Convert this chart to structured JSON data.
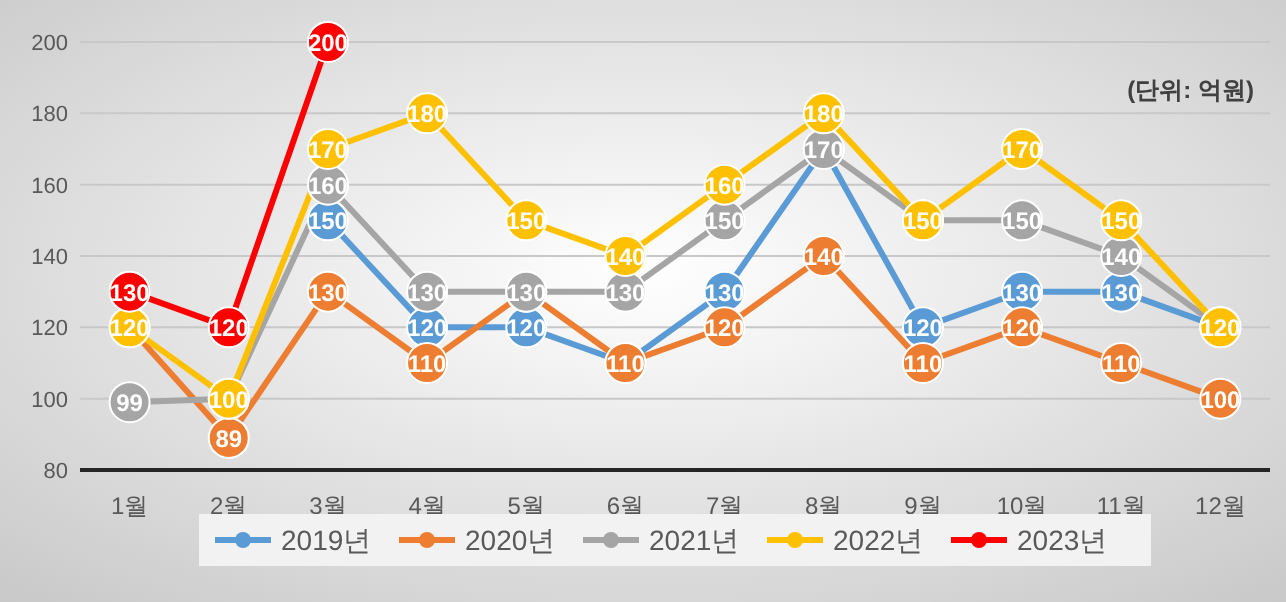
{
  "chart_data": {
    "type": "line",
    "categories": [
      "1월",
      "2월",
      "3월",
      "4월",
      "5월",
      "6월",
      "7월",
      "8월",
      "9월",
      "10월",
      "11월",
      "12월"
    ],
    "series": [
      {
        "name": "2019년",
        "color": "#5b9bd5",
        "values": [
          null,
          null,
          150,
          120,
          120,
          110,
          130,
          170,
          120,
          130,
          130,
          120
        ],
        "value_labels": [
          null,
          null,
          "150",
          "120",
          "120",
          null,
          "130",
          null,
          "120",
          "130",
          "130",
          null
        ]
      },
      {
        "name": "2020년",
        "color": "#ed7d31",
        "values": [
          120,
          89,
          130,
          110,
          130,
          110,
          120,
          140,
          110,
          120,
          110,
          100
        ],
        "value_labels": [
          null,
          "89",
          "130",
          "110",
          "130",
          "110",
          "120",
          "140",
          "110",
          "120",
          "110",
          "100"
        ]
      },
      {
        "name": "2021년",
        "color": "#a5a5a5",
        "values": [
          99,
          100,
          160,
          130,
          130,
          130,
          150,
          170,
          150,
          150,
          140,
          120
        ],
        "value_labels": [
          "99",
          null,
          "160",
          "130",
          null,
          "130",
          "150",
          "170",
          null,
          "150",
          "140",
          null
        ]
      },
      {
        "name": "2022년",
        "color": "#ffc000",
        "values": [
          120,
          100,
          170,
          180,
          150,
          140,
          160,
          180,
          150,
          170,
          150,
          120
        ],
        "value_labels": [
          "120",
          "100",
          "170",
          "180",
          "150",
          "140",
          "160",
          "180",
          "150",
          "170",
          "150",
          "120"
        ]
      },
      {
        "name": "2023년",
        "color": "#ff0000",
        "values": [
          130,
          120,
          200,
          null,
          null,
          null,
          null,
          null,
          null,
          null,
          null,
          null
        ],
        "value_labels": [
          "130",
          "120",
          "200",
          null,
          null,
          null,
          null,
          null,
          null,
          null,
          null,
          null
        ]
      }
    ],
    "ylim": [
      80,
      200
    ],
    "yticks": [
      80,
      100,
      120,
      140,
      160,
      180,
      200
    ],
    "grid": "y",
    "legend": "bottom",
    "marker": "circle",
    "annotations": [
      "(단위: 억원)"
    ]
  }
}
